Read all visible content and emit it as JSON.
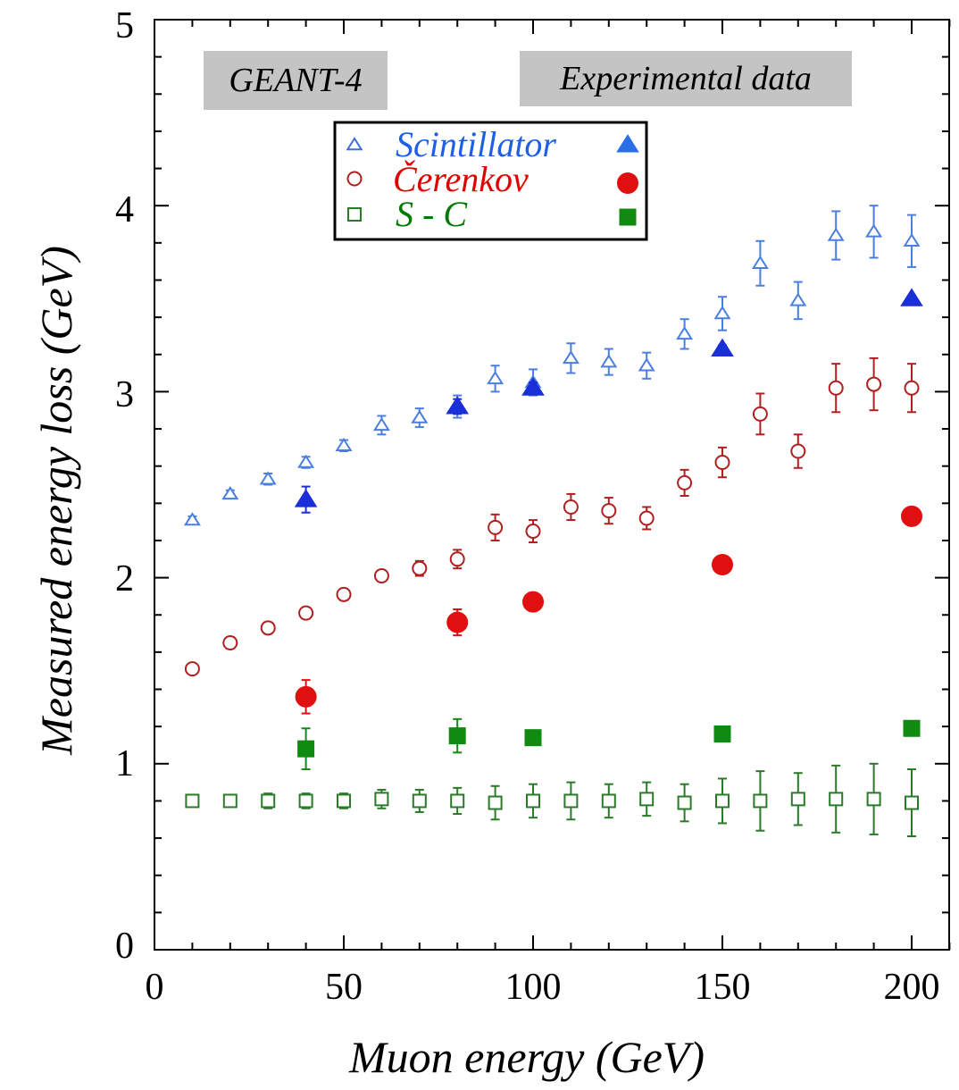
{
  "chart_data": {
    "type": "scatter",
    "xlabel": "Muon energy (GeV)",
    "ylabel": "Measured energy loss (GeV)",
    "xlim": [
      0,
      210
    ],
    "ylim": [
      0,
      5
    ],
    "xticks": [
      "0",
      "50",
      "100",
      "150",
      "200"
    ],
    "yticks": [
      "0",
      "1",
      "2",
      "3",
      "4",
      "5"
    ],
    "grid": false,
    "legend": {
      "placement": "top-center",
      "entries": [
        {
          "label": "Scintillator",
          "color": "#1f5fe6"
        },
        {
          "label": "Čerenkov",
          "color": "#e00000"
        },
        {
          "label": "S - C",
          "color": "#007a00"
        }
      ]
    },
    "annotations": {
      "simulation_box": "GEANT-4",
      "experiment_box": "Experimental data"
    },
    "colors": {
      "scint_sim": "#4a7fe0",
      "scint_exp": "#1a2fd8",
      "cer_sim": "#b02020",
      "cer_exp": "#e01010",
      "sc_sim": "#2a7a2a",
      "sc_exp": "#108a10",
      "box_fill": "#c4c4c4"
    },
    "series": [
      {
        "group": "GEANT-4",
        "quantity": "Scintillator",
        "marker": "open-triangle",
        "color_key": "scint_sim",
        "x": [
          10,
          20,
          30,
          40,
          50,
          60,
          70,
          80,
          90,
          100,
          110,
          120,
          130,
          140,
          150,
          160,
          170,
          180,
          190,
          200
        ],
        "y": [
          2.31,
          2.45,
          2.53,
          2.62,
          2.71,
          2.82,
          2.86,
          2.92,
          3.07,
          3.05,
          3.18,
          3.16,
          3.14,
          3.31,
          3.42,
          3.69,
          3.49,
          3.84,
          3.86,
          3.81
        ],
        "err": [
          0.02,
          0.02,
          0.03,
          0.03,
          0.03,
          0.05,
          0.05,
          0.06,
          0.07,
          0.07,
          0.08,
          0.07,
          0.07,
          0.08,
          0.09,
          0.12,
          0.1,
          0.13,
          0.14,
          0.14
        ]
      },
      {
        "group": "Experimental data",
        "quantity": "Scintillator",
        "marker": "filled-triangle",
        "color_key": "scint_exp",
        "x": [
          40,
          80,
          100,
          150,
          200
        ],
        "y": [
          2.42,
          2.92,
          3.02,
          3.23,
          3.5
        ],
        "err": [
          0.07,
          0.04,
          0.03,
          0.02,
          0.01
        ]
      },
      {
        "group": "GEANT-4",
        "quantity": "Čerenkov",
        "marker": "open-circle",
        "color_key": "cer_sim",
        "x": [
          10,
          20,
          30,
          40,
          50,
          60,
          70,
          80,
          90,
          100,
          110,
          120,
          130,
          140,
          150,
          160,
          170,
          180,
          190,
          200
        ],
        "y": [
          1.51,
          1.65,
          1.73,
          1.81,
          1.91,
          2.01,
          2.05,
          2.1,
          2.27,
          2.25,
          2.38,
          2.36,
          2.32,
          2.51,
          2.62,
          2.88,
          2.68,
          3.02,
          3.04,
          3.02
        ],
        "err": [
          0.02,
          0.03,
          0.03,
          0.03,
          0.03,
          0.03,
          0.04,
          0.05,
          0.07,
          0.06,
          0.07,
          0.07,
          0.06,
          0.07,
          0.08,
          0.11,
          0.09,
          0.13,
          0.14,
          0.13
        ]
      },
      {
        "group": "Experimental data",
        "quantity": "Čerenkov",
        "marker": "filled-circle",
        "color_key": "cer_exp",
        "x": [
          40,
          80,
          100,
          150,
          200
        ],
        "y": [
          1.36,
          1.76,
          1.87,
          2.07,
          2.33
        ],
        "err": [
          0.09,
          0.07,
          0.03,
          0.02,
          0.02
        ]
      },
      {
        "group": "GEANT-4",
        "quantity": "S - C",
        "marker": "open-square",
        "color_key": "sc_sim",
        "x": [
          10,
          20,
          30,
          40,
          50,
          60,
          70,
          80,
          90,
          100,
          110,
          120,
          130,
          140,
          150,
          160,
          170,
          180,
          190,
          200
        ],
        "y": [
          0.8,
          0.8,
          0.8,
          0.8,
          0.8,
          0.81,
          0.8,
          0.8,
          0.79,
          0.8,
          0.8,
          0.8,
          0.81,
          0.79,
          0.8,
          0.8,
          0.81,
          0.81,
          0.81,
          0.79
        ],
        "err": [
          0.03,
          0.03,
          0.04,
          0.04,
          0.04,
          0.05,
          0.06,
          0.07,
          0.09,
          0.09,
          0.1,
          0.09,
          0.09,
          0.1,
          0.12,
          0.16,
          0.14,
          0.18,
          0.19,
          0.18
        ]
      },
      {
        "group": "Experimental data",
        "quantity": "S - C",
        "marker": "filled-square",
        "color_key": "sc_exp",
        "x": [
          40,
          80,
          100,
          150,
          200
        ],
        "y": [
          1.08,
          1.15,
          1.14,
          1.16,
          1.19
        ],
        "err": [
          0.11,
          0.09,
          0.03,
          0.02,
          0.02
        ]
      }
    ]
  }
}
